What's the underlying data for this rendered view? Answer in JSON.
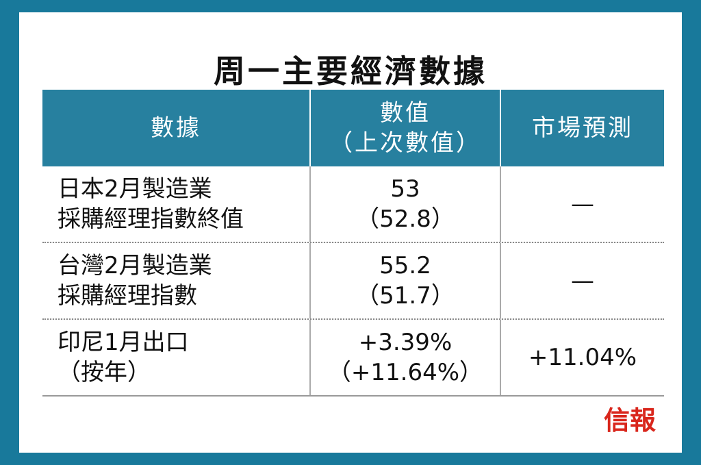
{
  "header": {
    "title": "周一主要經濟數據"
  },
  "table": {
    "columns": [
      [
        "數據"
      ],
      [
        "數值",
        "（上次數值）"
      ],
      [
        "市場預測"
      ]
    ],
    "rows": [
      [
        [
          "日本2月製造業",
          "採購經理指數終值"
        ],
        [
          "53",
          "（52.8）"
        ],
        [
          "—"
        ]
      ],
      [
        [
          "台灣2月製造業",
          "採購經理指數"
        ],
        [
          "55.2",
          "（51.7）"
        ],
        [
          "—"
        ]
      ],
      [
        [
          "印尼1月出口",
          "（按年）"
        ],
        [
          "+3.39%",
          "（+11.64%）"
        ],
        [
          "+11.04%"
        ]
      ]
    ]
  },
  "footer": {
    "logo": "信報"
  }
}
